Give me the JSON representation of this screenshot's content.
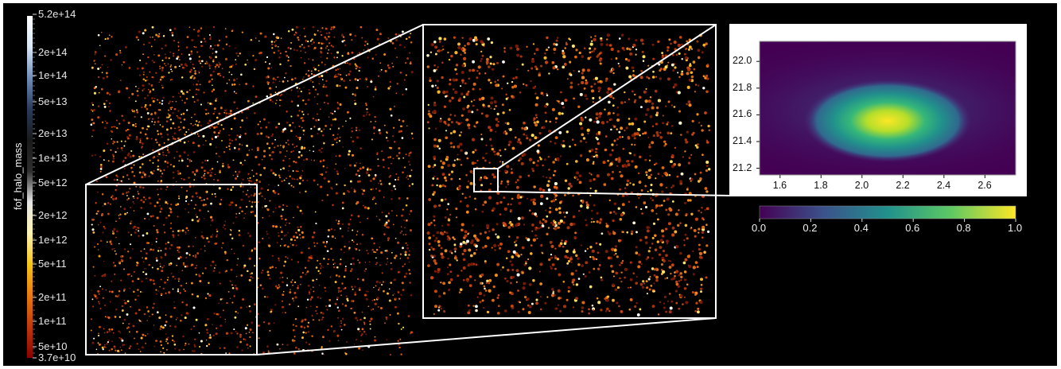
{
  "colorbar": {
    "title": "fof_halo_mass",
    "ticks": [
      "5.2e+14",
      "2e+14",
      "1e+14",
      "5e+13",
      "2e+13",
      "1e+13",
      "5e+12",
      "2e+12",
      "1e+12",
      "5e+11",
      "2e+11",
      "1e+11",
      "5e+10",
      "3.7e+10"
    ],
    "colormap": [
      "#8b0000",
      "#c0390b",
      "#e87a10",
      "#f5c518",
      "#fdf2b0",
      "#e6e6e6",
      "#2f2f2f",
      "#1a1a1a",
      "#2a3a5a",
      "#6e8db8",
      "#d8e6f5",
      "#ffffff"
    ]
  },
  "density_plot": {
    "xticks": [
      "1.6",
      "1.8",
      "2.0",
      "2.2",
      "2.4",
      "2.6"
    ],
    "yticks": [
      "22.0",
      "21.8",
      "21.6",
      "21.4",
      "21.2"
    ],
    "x_range": [
      1.5,
      2.75
    ],
    "y_range": [
      21.15,
      22.15
    ],
    "peak": {
      "x": 2.15,
      "y": 21.58
    },
    "colormap": "viridis"
  },
  "value_colorbar": {
    "ticks": [
      "0.0",
      "0.2",
      "0.4",
      "0.6",
      "0.8",
      "1.0"
    ],
    "range": [
      0,
      1
    ],
    "colormap": [
      "#440154",
      "#3b528b",
      "#21918c",
      "#5ec962",
      "#fde725"
    ]
  },
  "colors": {
    "background": "#000000",
    "frame": "#ffffff",
    "particle_palette": [
      "#7a1a05",
      "#a8320a",
      "#c9450d",
      "#e06a12",
      "#f08c1a",
      "#f8b52a",
      "#fde36a",
      "#fff8d0",
      "#ffffff"
    ]
  }
}
